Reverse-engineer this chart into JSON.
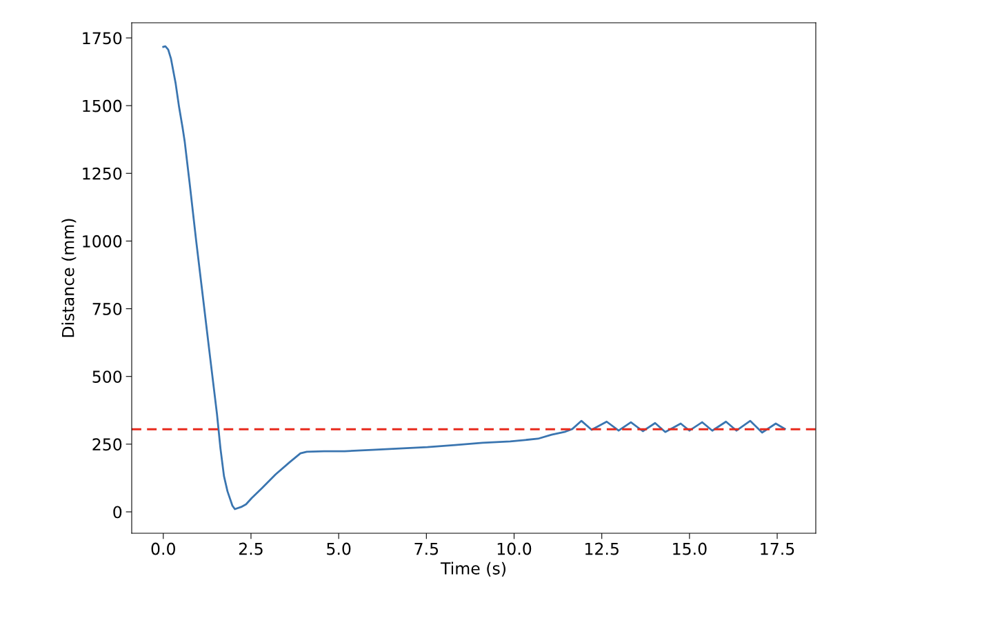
{
  "chart_data": {
    "type": "line",
    "xlabel": "Time (s)",
    "ylabel": "Distance (mm)",
    "xlim": [
      -0.9,
      18.6
    ],
    "ylim": [
      -79,
      1806
    ],
    "xticks": [
      {
        "value": 0,
        "label": "0.0"
      },
      {
        "value": 2.5,
        "label": "2.5"
      },
      {
        "value": 5,
        "label": "5.0"
      },
      {
        "value": 7.5,
        "label": "7.5"
      },
      {
        "value": 10,
        "label": "10.0"
      },
      {
        "value": 12.5,
        "label": "12.5"
      },
      {
        "value": 15,
        "label": "15.0"
      },
      {
        "value": 17.5,
        "label": "17.5"
      }
    ],
    "yticks": [
      0,
      250,
      500,
      750,
      1000,
      1250,
      1500,
      1750
    ],
    "grid": false,
    "legend": false,
    "series": [
      {
        "color": "#3a75b0",
        "x": [
          0.0,
          0.06,
          0.14,
          0.22,
          0.35,
          0.45,
          0.55,
          0.61,
          0.75,
          0.94,
          1.14,
          1.34,
          1.53,
          1.63,
          1.73,
          1.83,
          1.97,
          2.04,
          2.22,
          2.36,
          2.52,
          2.81,
          3.2,
          3.6,
          3.91,
          4.09,
          4.58,
          5.17,
          5.96,
          6.74,
          7.53,
          8.32,
          9.1,
          9.89,
          10.68,
          11.07,
          11.46,
          11.66,
          11.92,
          12.21,
          12.64,
          12.98,
          13.33,
          13.67,
          14.02,
          14.31,
          14.75,
          15.0,
          15.36,
          15.65,
          16.04,
          16.34,
          16.73,
          17.07,
          17.46,
          17.72
        ],
        "values": [
          1717,
          1719,
          1707,
          1673,
          1584,
          1495,
          1419,
          1368,
          1215,
          998,
          782,
          565,
          362,
          234,
          132,
          76,
          23,
          10,
          18,
          28,
          51,
          87,
          138,
          183,
          216,
          222,
          224,
          224,
          229,
          234,
          239,
          247,
          255,
          260,
          270,
          285,
          296,
          306,
          336,
          303,
          333,
          300,
          331,
          298,
          328,
          295,
          326,
          300,
          331,
          300,
          333,
          300,
          336,
          293,
          326,
          306
        ]
      }
    ],
    "ref_lines": [
      {
        "axis": "y",
        "value": 305,
        "color": "#e8291c",
        "line_style": "dashed"
      }
    ]
  }
}
